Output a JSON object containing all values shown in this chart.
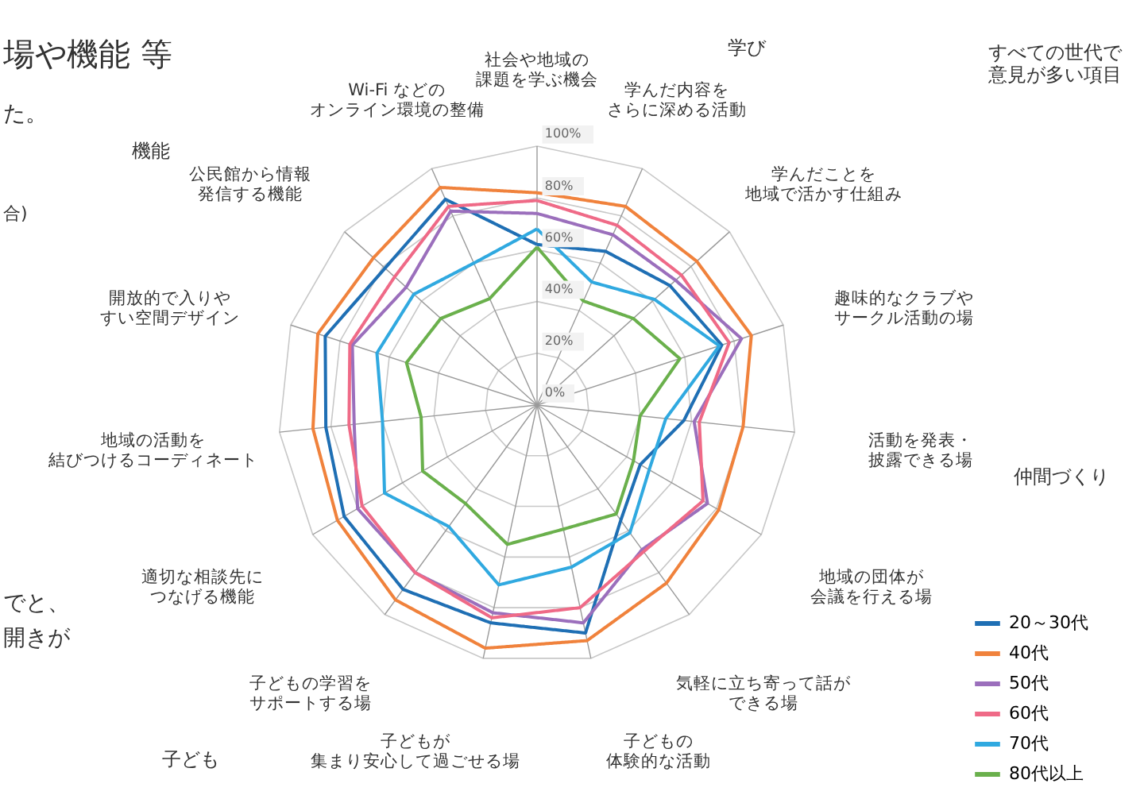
{
  "chart_data": {
    "type": "radar",
    "title": "場や機能 等",
    "categories": [
      "社会や地域の課題を学ぶ機会",
      "学んだ内容をさらに深める活動",
      "学んだことを地域で活かす仕組み",
      "趣味的なクラブやサークル活動の場",
      "活動を発表・披露できる場",
      "地域の団体が会議を行える場",
      "気軽に立ち寄って話ができる場",
      "子どもの体験的な活動",
      "子どもが集まり安心して過ごせる場",
      "子どもの学習をサポートする場",
      "適切な相談先につなげる機能",
      "地域の活動を結びつけるコーディネート",
      "開放的で入りやすい空間デザイン",
      "公民館から情報発信する機能",
      "Wi-Fi などのオンライン環境の整備"
    ],
    "series": [
      {
        "name": "20～30代",
        "color": "#1f6fb4",
        "values": [
          62,
          65,
          69,
          75,
          57,
          46,
          55,
          90,
          86,
          88,
          86,
          82,
          86,
          79,
          87
        ]
      },
      {
        "name": "40代",
        "color": "#f0823c",
        "values": [
          82,
          84,
          83,
          87,
          80,
          81,
          85,
          93,
          96,
          93,
          89,
          87,
          89,
          85,
          92
        ]
      },
      {
        "name": "50代",
        "color": "#9b6fbc",
        "values": [
          74,
          72,
          72,
          83,
          61,
          76,
          69,
          86,
          82,
          80,
          80,
          71,
          75,
          68,
          82
        ]
      },
      {
        "name": "60代",
        "color": "#ef6a87",
        "values": [
          79,
          76,
          75,
          78,
          63,
          74,
          70,
          80,
          84,
          80,
          78,
          73,
          76,
          74,
          84
        ]
      },
      {
        "name": "70代",
        "color": "#30a9e0",
        "values": [
          68,
          52,
          61,
          74,
          50,
          50,
          61,
          64,
          71,
          58,
          68,
          60,
          65,
          64,
          60
        ]
      },
      {
        "name": "80代以上",
        "color": "#6ab04c",
        "values": [
          61,
          44,
          50,
          58,
          40,
          43,
          52,
          49,
          55,
          47,
          51,
          45,
          53,
          50,
          45
        ]
      }
    ],
    "ylim": [
      0,
      100
    ],
    "yticks": [
      {
        "value": 0,
        "label": "0%"
      },
      {
        "value": 20,
        "label": "20%"
      },
      {
        "value": 40,
        "label": "40%"
      },
      {
        "value": 60,
        "label": "60%"
      },
      {
        "value": 80,
        "label": "80%"
      },
      {
        "value": 100,
        "label": "100%"
      }
    ],
    "grid": true,
    "legend": "bottom right",
    "marker": "none",
    "line_style": "solid",
    "annotations": [
      "学び",
      "仲間づくり",
      "子ども",
      "機能",
      "すべての世代で意見が多い項目",
      "た。",
      "合)",
      "でと、",
      "開きが"
    ]
  }
}
